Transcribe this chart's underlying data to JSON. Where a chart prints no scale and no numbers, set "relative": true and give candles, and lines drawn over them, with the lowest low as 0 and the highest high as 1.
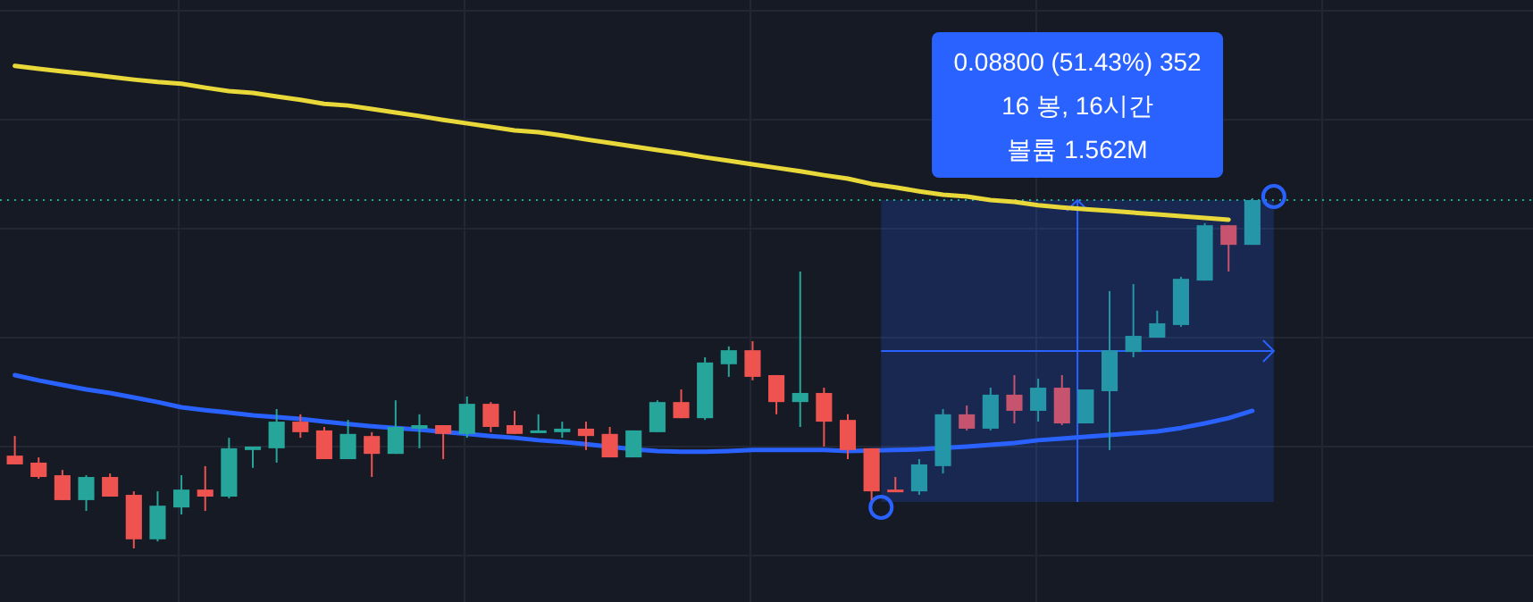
{
  "chart_data": {
    "type": "candlestick",
    "relative": true,
    "grid": true,
    "categories": [
      null,
      null,
      null,
      null,
      null,
      null,
      null,
      null,
      null,
      null,
      null,
      null,
      null,
      null,
      null,
      null,
      null,
      null,
      null,
      null,
      null,
      null,
      null,
      null,
      null,
      null,
      null,
      null,
      null,
      null,
      null,
      null,
      null,
      null,
      null,
      null,
      null,
      null,
      null,
      null,
      null,
      null,
      null,
      null,
      null,
      null,
      null,
      null,
      null,
      null,
      null,
      null,
      null
    ],
    "ohlc": [
      [
        0.265,
        0.321,
        0.24,
        0.24
      ],
      [
        0.245,
        0.26,
        0.199,
        0.204
      ],
      [
        0.209,
        0.224,
        0.138,
        0.138
      ],
      [
        0.138,
        0.209,
        0.107,
        0.204
      ],
      [
        0.204,
        0.214,
        0.148,
        0.148
      ],
      [
        0.153,
        0.163,
        0,
        0.026
      ],
      [
        0.026,
        0.163,
        0.02,
        0.122
      ],
      [
        0.117,
        0.209,
        0.097,
        0.168
      ],
      [
        0.168,
        0.235,
        0.107,
        0.148
      ],
      [
        0.148,
        0.316,
        0.143,
        0.286
      ],
      [
        0.281,
        0.291,
        0.23,
        0.291
      ],
      [
        0.286,
        0.398,
        0.245,
        0.362
      ],
      [
        0.362,
        0.383,
        0.316,
        0.332
      ],
      [
        0.337,
        0.347,
        0.255,
        0.255
      ],
      [
        0.255,
        0.367,
        0.255,
        0.327
      ],
      [
        0.321,
        0.332,
        0.204,
        0.27
      ],
      [
        0.27,
        0.423,
        0.27,
        0.347
      ],
      [
        0.342,
        0.383,
        0.286,
        0.352
      ],
      [
        0.352,
        0.352,
        0.255,
        0.327
      ],
      [
        0.327,
        0.434,
        0.316,
        0.413
      ],
      [
        0.413,
        0.418,
        0.332,
        0.347
      ],
      [
        0.352,
        0.393,
        0.327,
        0.327
      ],
      [
        0.332,
        0.383,
        0.332,
        0.337
      ],
      [
        0.332,
        0.362,
        0.316,
        0.342
      ],
      [
        0.342,
        0.362,
        0.281,
        0.321
      ],
      [
        0.327,
        0.347,
        0.26,
        0.26
      ],
      [
        0.26,
        0.337,
        0.26,
        0.337
      ],
      [
        0.332,
        0.423,
        0.332,
        0.418
      ],
      [
        0.418,
        0.454,
        0.372,
        0.372
      ],
      [
        0.372,
        0.546,
        0.367,
        0.531
      ],
      [
        0.526,
        0.577,
        0.49,
        0.566
      ],
      [
        0.566,
        0.592,
        0.48,
        0.49
      ],
      [
        0.495,
        0.495,
        0.383,
        0.418
      ],
      [
        0.418,
        0.791,
        0.347,
        0.444
      ],
      [
        0.444,
        0.459,
        0.291,
        0.362
      ],
      [
        0.367,
        0.383,
        0.255,
        0.281
      ],
      [
        0.286,
        0.286,
        0.138,
        0.163
      ],
      [
        0.168,
        0.204,
        0.163,
        0.163
      ],
      [
        0.163,
        0.255,
        0.153,
        0.24
      ],
      [
        0.235,
        0.398,
        0.214,
        0.383
      ],
      [
        0.383,
        0.408,
        0.337,
        0.342
      ],
      [
        0.342,
        0.459,
        0.337,
        0.439
      ],
      [
        0.439,
        0.495,
        0.357,
        0.393
      ],
      [
        0.393,
        0.485,
        0.362,
        0.459
      ],
      [
        0.459,
        0.495,
        0.352,
        0.357
      ],
      [
        0.357,
        0.454,
        0.357,
        0.454
      ],
      [
        0.449,
        0.735,
        0.281,
        0.566
      ],
      [
        0.561,
        0.755,
        0.546,
        0.607
      ],
      [
        0.602,
        0.679,
        0.602,
        0.643
      ],
      [
        0.638,
        0.776,
        0.633,
        0.77
      ],
      [
        0.765,
        0.929,
        0.765,
        0.923
      ],
      [
        0.923,
        0.923,
        0.791,
        0.867
      ],
      [
        0.867,
        1,
        0.867,
        0.995
      ]
    ],
    "colors": [
      "#ef5350",
      "#ef5350",
      "#ef5350",
      "#26a69a",
      "#ef5350",
      "#ef5350",
      "#26a69a",
      "#26a69a",
      "#ef5350",
      "#26a69a",
      "#26a69a",
      "#26a69a",
      "#ef5350",
      "#ef5350",
      "#26a69a",
      "#ef5350",
      "#26a69a",
      "#26a69a",
      "#ef5350",
      "#26a69a",
      "#ef5350",
      "#ef5350",
      "#26a69a",
      "#26a69a",
      "#ef5350",
      "#ef5350",
      "#26a69a",
      "#26a69a",
      "#ef5350",
      "#26a69a",
      "#26a69a",
      "#ef5350",
      "#ef5350",
      "#26a69a",
      "#ef5350",
      "#ef5350",
      "#ef5350",
      "#ef5350",
      "#2596a8",
      "#2596a8",
      "#c6546f",
      "#2596a8",
      "#c6546f",
      "#2596a8",
      "#c6546f",
      "#2596a8",
      "#2596a8",
      "#2596a8",
      "#2596a8",
      "#2596a8",
      "#2596a8",
      "#c6546f",
      "#2596a8"
    ],
    "series": [
      {
        "type": "line",
        "color": "#e8d83a",
        "values": [
          1.378,
          1.37,
          1.362,
          1.355,
          1.347,
          1.339,
          1.332,
          1.327,
          1.316,
          1.306,
          1.301,
          1.291,
          1.281,
          1.27,
          1.265,
          1.255,
          1.245,
          1.235,
          1.224,
          1.214,
          1.204,
          1.194,
          1.189,
          1.179,
          1.168,
          1.158,
          1.148,
          1.138,
          1.128,
          1.117,
          1.107,
          1.097,
          1.087,
          1.077,
          1.066,
          1.056,
          1.041,
          1.031,
          1.02,
          1.01,
          1.005,
          0.995,
          0.99,
          0.98,
          0.974,
          0.969,
          0.964,
          0.959,
          0.954,
          0.949,
          0.944,
          0.939,
          null
        ]
      },
      {
        "type": "line",
        "color": "#2962ff",
        "values": [
          0.495,
          0.48,
          0.467,
          0.454,
          0.444,
          0.431,
          0.418,
          0.403,
          0.395,
          0.388,
          0.38,
          0.375,
          0.37,
          0.362,
          0.355,
          0.349,
          0.344,
          0.339,
          null,
          0.327,
          0.321,
          0.316,
          0.309,
          0.304,
          0.298,
          null,
          0.283,
          0.278,
          0.276,
          0.276,
          0.278,
          0.281,
          0.281,
          0.281,
          0.281,
          0.278,
          null,
          0.281,
          0.283,
          null,
          0.291,
          0.296,
          0.301,
          0.309,
          0.314,
          0.319,
          0.324,
          0.329,
          0.334,
          0.344,
          0.357,
          0.372,
          0.393
        ]
      }
    ],
    "ref_lines": [
      {
        "axis": "y",
        "value": 0.995,
        "color": "#22ab94",
        "line_style": "dotted"
      }
    ],
    "annotations": [
      "0.08800 (51.43%) 352",
      "16 봉, 16시간",
      "볼륨 1.562M"
    ]
  }
}
